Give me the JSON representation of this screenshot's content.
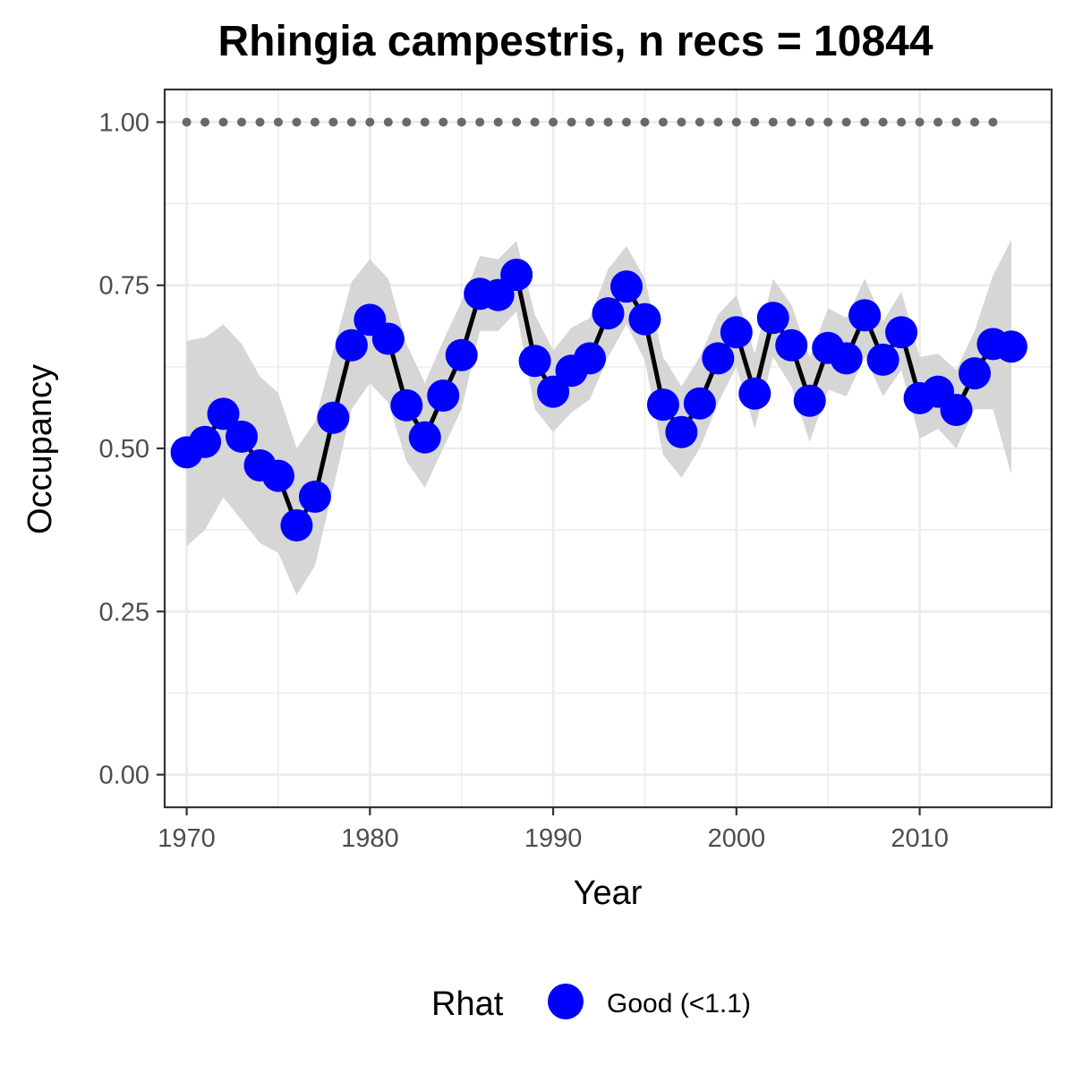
{
  "chart_data": {
    "type": "line",
    "title": "Rhingia campestris, n recs = 10844",
    "xlabel": "Year",
    "ylabel": "Occupancy",
    "xlim": [
      1968.8,
      2017.2
    ],
    "ylim": [
      -0.05,
      1.05
    ],
    "x_ticks": [
      1970,
      1980,
      1990,
      2000,
      2010
    ],
    "x_tick_labels": [
      "1970",
      "1980",
      "1990",
      "2000",
      "2010"
    ],
    "y_ticks": [
      0,
      0.25,
      0.5,
      0.75,
      1.0
    ],
    "y_tick_labels": [
      "0.00",
      "0.25",
      "0.50",
      "0.75",
      "1.00"
    ],
    "grid": true,
    "legend": {
      "position": "bottom",
      "title": "Rhat",
      "entries": [
        {
          "label": "Good (<1.1)",
          "color": "#0000ff"
        }
      ]
    },
    "colors": {
      "point": "#0000ff",
      "line": "#000000",
      "ribbon": "#d6d6d6",
      "reference_points": "#696969",
      "panel_border": "#333333",
      "grid": "#ebebeb"
    },
    "series": [
      {
        "name": "",
        "x": [
          1970,
          1971,
          1972,
          1973,
          1974,
          1975,
          1976,
          1977,
          1978,
          1979,
          1980,
          1981,
          1982,
          1983,
          1984,
          1985,
          1986,
          1987,
          1988,
          1989,
          1990,
          1991,
          1992,
          1993,
          1994,
          1995,
          1996,
          1997,
          1998,
          1999,
          2000,
          2001,
          2002,
          2003,
          2004,
          2005,
          2006,
          2007,
          2008,
          2009,
          2010,
          2011,
          2012,
          2013,
          2014,
          2015
        ],
        "y": [
          0.494,
          0.51,
          0.553,
          0.518,
          0.474,
          0.458,
          0.382,
          0.426,
          0.547,
          0.658,
          0.697,
          0.668,
          0.566,
          0.517,
          0.581,
          0.643,
          0.737,
          0.735,
          0.766,
          0.634,
          0.587,
          0.619,
          0.638,
          0.707,
          0.748,
          0.698,
          0.567,
          0.525,
          0.569,
          0.638,
          0.678,
          0.584,
          0.7,
          0.658,
          0.573,
          0.654,
          0.638,
          0.704,
          0.636,
          0.678,
          0.577,
          0.587,
          0.559,
          0.615,
          0.66,
          0.656
        ],
        "lower": [
          0.35,
          0.375,
          0.425,
          0.39,
          0.355,
          0.34,
          0.275,
          0.32,
          0.44,
          0.56,
          0.6,
          0.57,
          0.48,
          0.44,
          0.5,
          0.56,
          0.68,
          0.68,
          0.71,
          0.56,
          0.525,
          0.555,
          0.575,
          0.64,
          0.69,
          0.635,
          0.49,
          0.455,
          0.5,
          0.57,
          0.625,
          0.53,
          0.64,
          0.595,
          0.51,
          0.59,
          0.58,
          0.64,
          0.58,
          0.62,
          0.515,
          0.53,
          0.5,
          0.56,
          0.56,
          0.46
        ],
        "upper": [
          0.665,
          0.67,
          0.69,
          0.66,
          0.61,
          0.585,
          0.5,
          0.54,
          0.65,
          0.755,
          0.79,
          0.76,
          0.66,
          0.6,
          0.665,
          0.725,
          0.795,
          0.79,
          0.818,
          0.705,
          0.65,
          0.685,
          0.7,
          0.775,
          0.81,
          0.76,
          0.64,
          0.595,
          0.64,
          0.705,
          0.735,
          0.645,
          0.76,
          0.72,
          0.64,
          0.715,
          0.7,
          0.76,
          0.695,
          0.74,
          0.64,
          0.645,
          0.62,
          0.68,
          0.765,
          0.82
        ]
      }
    ],
    "reference_points": {
      "x": [
        1970,
        1971,
        1972,
        1973,
        1974,
        1975,
        1976,
        1977,
        1978,
        1979,
        1980,
        1981,
        1982,
        1983,
        1984,
        1985,
        1986,
        1987,
        1988,
        1989,
        1990,
        1991,
        1992,
        1993,
        1994,
        1995,
        1996,
        1997,
        1998,
        1999,
        2000,
        2001,
        2002,
        2003,
        2004,
        2005,
        2006,
        2007,
        2008,
        2009,
        2010,
        2011,
        2012,
        2013,
        2014
      ],
      "y": 1.0
    }
  }
}
